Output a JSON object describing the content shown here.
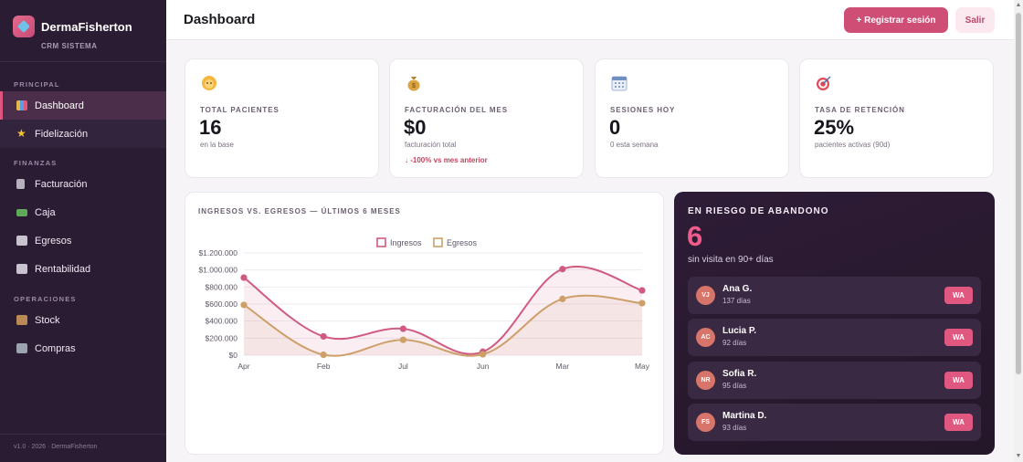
{
  "brand": {
    "name": "DermaFisherton",
    "subtitle": "CRM SISTEMA"
  },
  "sidebar": {
    "sections": [
      {
        "label": "PRINCIPAL"
      },
      {
        "label": "FINANZAS"
      },
      {
        "label": "OPERACIONES"
      }
    ],
    "items": [
      {
        "label": "Dashboard",
        "icon": "bar-chart-icon"
      },
      {
        "label": "Fidelización",
        "icon": "star-icon"
      },
      {
        "label": "Facturación",
        "icon": "receipt-icon"
      },
      {
        "label": "Caja",
        "icon": "cash-icon"
      },
      {
        "label": "Egresos",
        "icon": "expense-icon"
      },
      {
        "label": "Rentabilidad",
        "icon": "trend-chart-icon"
      },
      {
        "label": "Stock",
        "icon": "box-icon"
      },
      {
        "label": "Compras",
        "icon": "cart-icon"
      }
    ],
    "footer": "v1.0 · 2026 · DermaFisherton"
  },
  "header": {
    "title": "Dashboard",
    "primary_button": "+ Registrar sesión",
    "secondary_button": "Salir"
  },
  "stats": [
    {
      "label": "TOTAL PACIENTES",
      "value": "16",
      "sub": "en la base",
      "icon": "person-icon",
      "trend": ""
    },
    {
      "label": "FACTURACIÓN DEL MES",
      "value": "$0",
      "sub": "facturación total",
      "icon": "money-bag-icon",
      "trend": "↓ -100% vs mes anterior"
    },
    {
      "label": "SESIONES HOY",
      "value": "0",
      "sub": "0 esta semana",
      "icon": "calendar-icon",
      "trend": ""
    },
    {
      "label": "TASA DE RETENCIÓN",
      "value": "25%",
      "sub": "pacientes activas (90d)",
      "icon": "target-icon",
      "trend": ""
    }
  ],
  "chart_title": "INGRESOS VS. EGRESOS — ÚLTIMOS 6 MESES",
  "chart_data": {
    "type": "area",
    "categories": [
      "Apr",
      "Feb",
      "Jul",
      "Jun",
      "Mar",
      "May"
    ],
    "series": [
      {
        "name": "Ingresos",
        "color": "#d15a7f",
        "values": [
          910000,
          220000,
          310000,
          40000,
          1010000,
          760000
        ]
      },
      {
        "name": "Egresos",
        "color": "#cda06a",
        "values": [
          590000,
          5000,
          180000,
          10000,
          660000,
          610000
        ]
      }
    ],
    "yticks": [
      "$1.200.000",
      "$1.000.000",
      "$800.000",
      "$600.000",
      "$400.000",
      "$200.000",
      "$0"
    ],
    "ylim": [
      0,
      1200000
    ],
    "legend": "top-center",
    "grid": true
  },
  "risk": {
    "title": "EN RIESGO DE ABANDONO",
    "count": "6",
    "subtitle": "sin visita en 90+ días",
    "action_label": "WA",
    "patients": [
      {
        "initials": "VJ",
        "name": "Ana G.",
        "days": "137 días"
      },
      {
        "initials": "AC",
        "name": "Lucia P.",
        "days": "92 días"
      },
      {
        "initials": "NR",
        "name": "Sofia R.",
        "days": "95 días"
      },
      {
        "initials": "FS",
        "name": "Martina D.",
        "days": "93 días"
      }
    ]
  }
}
